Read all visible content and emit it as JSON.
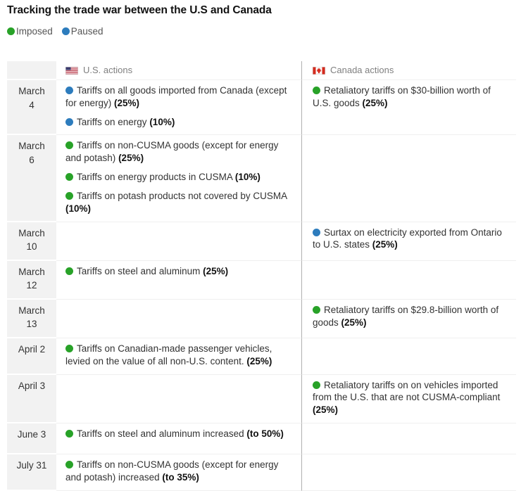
{
  "chart_data": {
    "type": "table",
    "title": "Tracking the trade war between the U.S and Canada",
    "legend": [
      {
        "label": "Imposed",
        "status": "imposed",
        "color": "#28a228"
      },
      {
        "label": "Paused",
        "status": "paused",
        "color": "#2d7cbd"
      }
    ],
    "colors": {
      "imposed": "#28a228",
      "paused": "#2d7cbd"
    },
    "columns": {
      "date": {
        "label": ""
      },
      "us": {
        "label": "U.S. actions",
        "flag": "us-flag-icon"
      },
      "canada": {
        "label": "Canada actions",
        "flag": "canada-flag-icon"
      }
    },
    "rows": [
      {
        "date": "March 4",
        "us": [
          {
            "status": "paused",
            "text": "Tariffs on all goods imported from Canada (except for energy) ",
            "bold": "(25%)"
          },
          {
            "status": "paused",
            "text": "Tariffs on energy ",
            "bold": "(10%)"
          }
        ],
        "canada": [
          {
            "status": "imposed",
            "text": "Retaliatory tariffs on $30-billion worth of U.S. goods ",
            "bold": "(25%)"
          }
        ]
      },
      {
        "date": "March 6",
        "us": [
          {
            "status": "imposed",
            "text": "Tariffs on non-CUSMA goods (except for energy and potash) ",
            "bold": "(25%)"
          },
          {
            "status": "imposed",
            "text": "Tariffs on energy products in CUSMA ",
            "bold": "(10%)"
          },
          {
            "status": "imposed",
            "text": "Tariffs on potash products not covered by CUSMA ",
            "bold": "(10%)"
          }
        ],
        "canada": []
      },
      {
        "date": "March 10",
        "us": [],
        "canada": [
          {
            "status": "paused",
            "text": "Surtax on electricity exported from Ontario to U.S. states ",
            "bold": "(25%)"
          }
        ]
      },
      {
        "date": "March 12",
        "us": [
          {
            "status": "imposed",
            "text": "Tariffs on steel and aluminum ",
            "bold": "(25%)"
          }
        ],
        "canada": []
      },
      {
        "date": "March 13",
        "us": [],
        "canada": [
          {
            "status": "imposed",
            "text": "Retaliatory tariffs on $29.8-billion worth of goods ",
            "bold": "(25%)"
          }
        ]
      },
      {
        "date": "April 2",
        "us": [
          {
            "status": "imposed",
            "text": "Tariffs on Canadian-made passenger vehicles, levied on the value of all non-U.S. content. ",
            "bold": "(25%)"
          }
        ],
        "canada": []
      },
      {
        "date": "April 3",
        "us": [],
        "canada": [
          {
            "status": "imposed",
            "text": "Retaliatory tariffs on on vehicles imported from the U.S. that are not CUSMA-compliant ",
            "bold": "(25%)"
          }
        ]
      },
      {
        "date": "June 3",
        "us": [
          {
            "status": "imposed",
            "text": "Tariffs on steel and aluminum increased ",
            "bold": "(to 50%)"
          }
        ],
        "canada": []
      },
      {
        "date": "July 31",
        "us": [
          {
            "status": "imposed",
            "text": "Tariffs on non-CUSMA goods (except for energy and potash) increased ",
            "bold": "(to 35%)"
          }
        ],
        "canada": []
      }
    ]
  }
}
